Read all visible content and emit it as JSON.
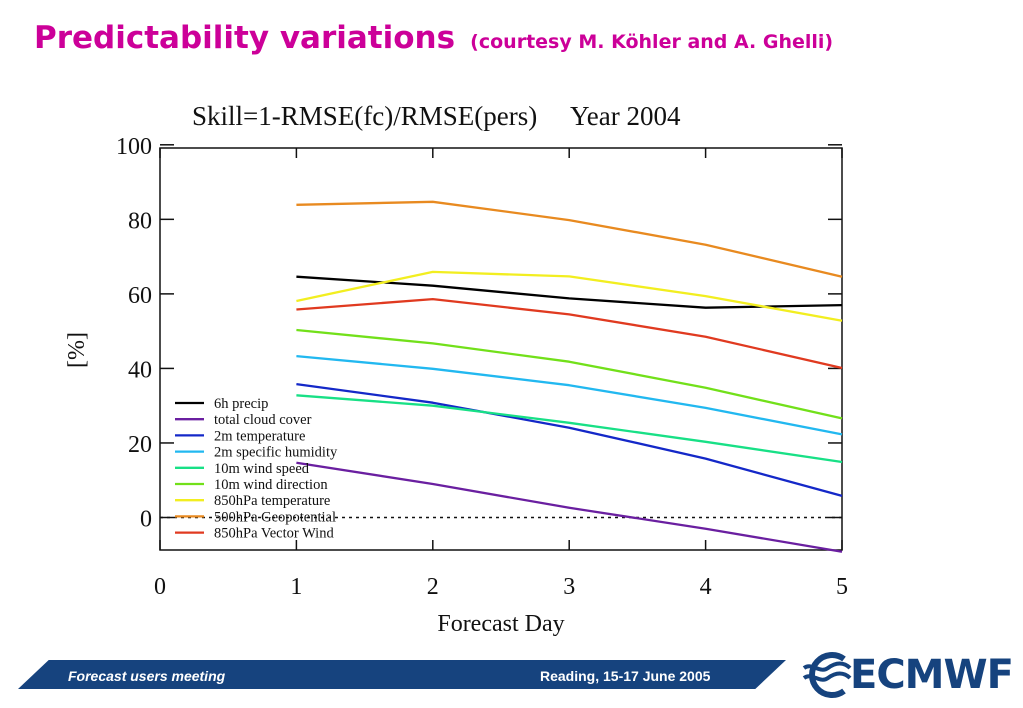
{
  "slide": {
    "title": "Predictability variations",
    "subtitle": "(courtesy M. Köhler and A. Ghelli)"
  },
  "footer": {
    "left_text": "Forecast users meeting",
    "right_text": "Reading, 15-17 June 2005",
    "logo_text": "ECMWF",
    "bar_color": "#16437e"
  },
  "chart_data": {
    "type": "line",
    "title": "Skill=1-RMSE(fc)/RMSE(pers)     Year 2004",
    "xlabel": "Forecast Day",
    "ylabel": "[%]",
    "xlim": [
      0,
      5
    ],
    "ylim": [
      -10,
      100
    ],
    "xticks": [
      0,
      1,
      2,
      3,
      4,
      5
    ],
    "yticks": [
      0,
      20,
      40,
      60,
      80,
      100
    ],
    "zero_line": "dotted",
    "grid": false,
    "legend_position": "lower-left",
    "x": [
      1,
      2,
      3,
      4,
      5
    ],
    "series": [
      {
        "name": "6h precip",
        "color": "#000000",
        "values": [
          64.6,
          62.2,
          58.8,
          56.3,
          57.0
        ]
      },
      {
        "name": "total cloud cover",
        "color": "#6a1fa0",
        "values": [
          14.7,
          9.0,
          2.6,
          -3.0,
          -9.2
        ]
      },
      {
        "name": "2m temperature",
        "color": "#1428c8",
        "values": [
          35.8,
          30.8,
          24.1,
          15.8,
          5.8
        ]
      },
      {
        "name": "2m specific humidity",
        "color": "#22b8f0",
        "values": [
          43.3,
          39.9,
          35.5,
          29.4,
          22.3
        ]
      },
      {
        "name": "10m wind speed",
        "color": "#18e086",
        "values": [
          32.8,
          30.0,
          25.4,
          20.3,
          14.9
        ]
      },
      {
        "name": "10m wind direction",
        "color": "#72e01a",
        "values": [
          50.3,
          46.7,
          41.8,
          34.8,
          26.6
        ]
      },
      {
        "name": "850hPa temperature",
        "color": "#f2ee20",
        "values": [
          58.1,
          65.9,
          64.7,
          59.4,
          52.8
        ]
      },
      {
        "name": "500hPa Geopotential",
        "color": "#e88a20",
        "values": [
          83.9,
          84.7,
          79.8,
          73.2,
          64.6
        ]
      },
      {
        "name": "850hPa Vector Wind",
        "color": "#e03a20",
        "values": [
          55.8,
          58.6,
          54.5,
          48.5,
          40.1
        ]
      }
    ]
  }
}
